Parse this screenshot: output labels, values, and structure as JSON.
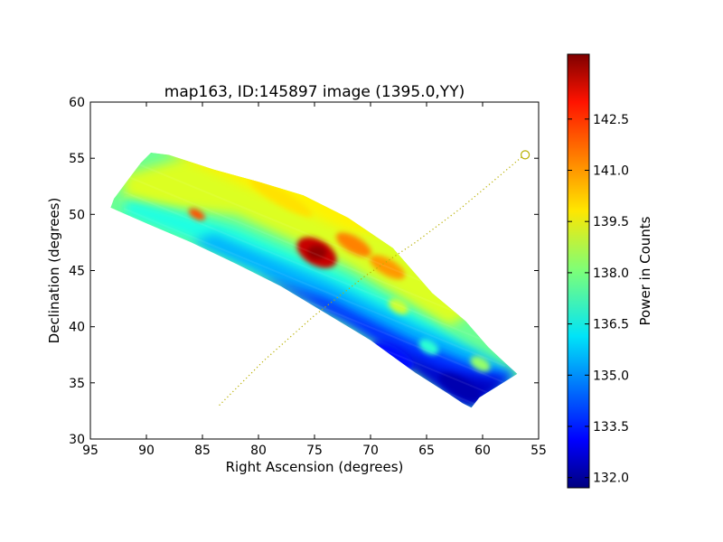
{
  "chart_data": [
    {
      "type": "heatmap",
      "title": "map163, ID:145897 image (1395.0,YY)",
      "xlabel": "Right Ascension (degrees)",
      "ylabel": "Declination (degrees)",
      "xlim": [
        95,
        55
      ],
      "ylim": [
        30,
        60
      ],
      "xticks": [
        95,
        90,
        85,
        80,
        75,
        70,
        65,
        60,
        55
      ],
      "yticks": [
        30,
        35,
        40,
        45,
        50,
        55,
        60
      ],
      "colorbar": {
        "label": "Power in Counts",
        "range": [
          131.7,
          144.4
        ],
        "ticks": [
          "132.0",
          "133.5",
          "135.0",
          "136.5",
          "138.0",
          "139.5",
          "141.0",
          "142.5"
        ],
        "colormap": "jet"
      },
      "footprint_outline": [
        [
          93.2,
          50.6
        ],
        [
          92.9,
          51.4
        ],
        [
          90.5,
          54.6
        ],
        [
          89.6,
          55.5
        ],
        [
          88.0,
          55.3
        ],
        [
          84.0,
          54.0
        ],
        [
          80.0,
          52.9
        ],
        [
          76.0,
          51.7
        ],
        [
          72.0,
          49.7
        ],
        [
          68.0,
          47.0
        ],
        [
          64.5,
          43.0
        ],
        [
          61.5,
          40.5
        ],
        [
          59.5,
          38.2
        ],
        [
          58.0,
          36.8
        ],
        [
          56.9,
          35.8
        ],
        [
          60.3,
          33.7
        ],
        [
          61.0,
          32.8
        ],
        [
          61.8,
          33.2
        ],
        [
          63.0,
          34.0
        ],
        [
          66.0,
          35.9
        ],
        [
          70.0,
          38.8
        ],
        [
          74.0,
          41.2
        ],
        [
          78.0,
          43.6
        ],
        [
          82.0,
          45.6
        ],
        [
          86.0,
          47.5
        ],
        [
          90.0,
          49.2
        ],
        [
          93.2,
          50.6
        ]
      ],
      "features": [
        {
          "name": "hotspot",
          "ra": 74.8,
          "dec": 46.6,
          "value": 143.5
        },
        {
          "name": "warm band",
          "ra": 71.5,
          "dec": 47.3,
          "value": 141.2
        },
        {
          "name": "warm band",
          "ra": 68.5,
          "dec": 45.3,
          "value": 140.9
        },
        {
          "name": "warm spot",
          "ra": 85.5,
          "dec": 50.0,
          "value": 141.8
        },
        {
          "name": "warm ridge",
          "ra": 78.0,
          "dec": 51.5,
          "value": 140.0
        },
        {
          "name": "cold edge",
          "ra": 62.0,
          "dec": 34.6,
          "value": 132.3
        },
        {
          "name": "cold edge",
          "ra": 68.0,
          "dec": 37.4,
          "value": 133.5
        },
        {
          "name": "mid spot",
          "ra": 60.2,
          "dec": 36.7,
          "value": 138.3
        },
        {
          "name": "mid spot",
          "ra": 64.8,
          "dec": 38.2,
          "value": 137.0
        },
        {
          "name": "mid spot",
          "ra": 67.5,
          "dec": 41.8,
          "value": 139.0
        }
      ],
      "track": {
        "points": [
          [
            83.5,
            33.0
          ],
          [
            79.5,
            37.0
          ],
          [
            75.0,
            41.0
          ],
          [
            70.5,
            44.5
          ],
          [
            66.0,
            47.5
          ],
          [
            62.0,
            50.5
          ],
          [
            59.0,
            53.0
          ],
          [
            56.4,
            55.2
          ]
        ],
        "marker": {
          "ra": 56.2,
          "dec": 55.3,
          "shape": "open-circle"
        },
        "color": "#b8b000"
      }
    }
  ]
}
